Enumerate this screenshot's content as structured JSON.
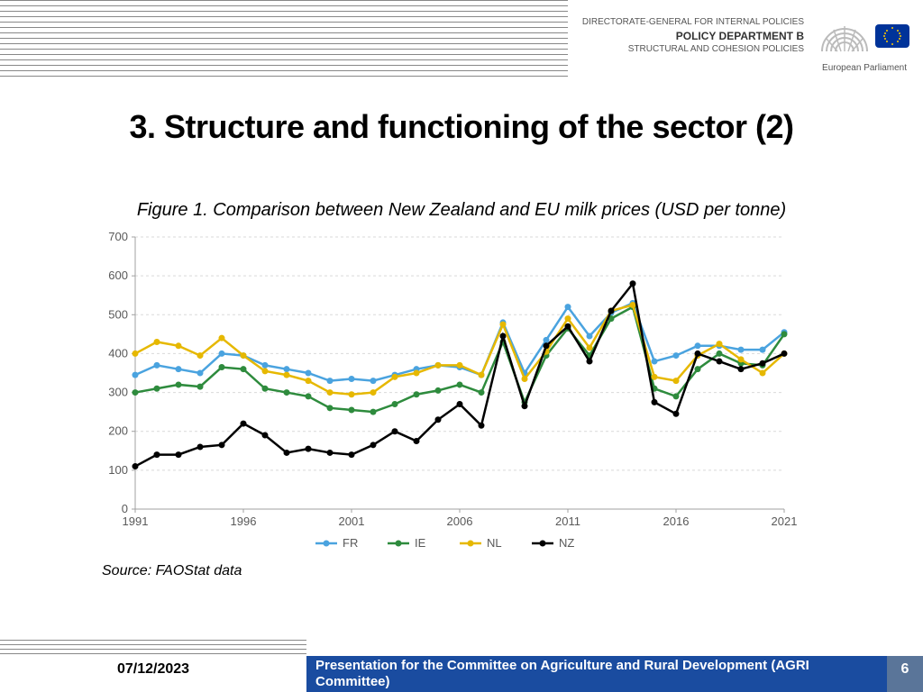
{
  "header": {
    "line1": "DIRECTORATE-GENERAL FOR INTERNAL POLICIES",
    "line2": "POLICY DEPARTMENT B",
    "line3": "STRUCTURAL AND COHESION POLICIES",
    "ep_caption": "European Parliament",
    "flag_color": "#003399",
    "star_color": "#ffcc00"
  },
  "title": "3. Structure and functioning of the sector (2)",
  "figure_caption": "Figure 1. Comparison between New Zealand and EU milk prices (USD per tonne)",
  "source": "Source: FAOStat data",
  "footer": {
    "date": "07/12/2023",
    "title": "Presentation for the Committee on Agriculture and Rural Development (AGRI Committee)",
    "page": "6",
    "bar_color": "#1a4ca0",
    "page_bg": "#5a7599"
  },
  "chart": {
    "type": "line",
    "ylim": [
      0,
      700
    ],
    "ytick_step": 100,
    "x_ticks": [
      1991,
      1996,
      2001,
      2006,
      2011,
      2016,
      2021
    ],
    "axis_color": "#a0a0a0",
    "tick_label_color": "#595959",
    "grid_color": "#d9d9d9",
    "tick_fontsize": 13,
    "plot_bg": "#ffffff",
    "line_width": 2.5,
    "marker_size": 3.5,
    "series": [
      {
        "label": "FR",
        "color": "#4aa3df",
        "marker": "circle",
        "data": [
          345,
          370,
          360,
          350,
          400,
          395,
          370,
          360,
          350,
          330,
          335,
          330,
          345,
          360,
          370,
          365,
          345,
          480,
          350,
          435,
          520,
          445,
          505,
          530,
          380,
          395,
          420,
          420,
          410,
          410,
          455
        ]
      },
      {
        "label": "IE",
        "color": "#2e8b3d",
        "marker": "circle",
        "data": [
          300,
          310,
          320,
          315,
          365,
          360,
          310,
          300,
          290,
          260,
          255,
          250,
          270,
          295,
          305,
          320,
          300,
          430,
          275,
          395,
          465,
          395,
          490,
          520,
          310,
          290,
          360,
          400,
          375,
          370,
          450
        ]
      },
      {
        "label": "NL",
        "color": "#e6b800",
        "marker": "circle",
        "data": [
          400,
          430,
          420,
          395,
          440,
          395,
          355,
          345,
          330,
          300,
          295,
          300,
          340,
          350,
          370,
          370,
          345,
          475,
          335,
          405,
          490,
          415,
          510,
          525,
          340,
          330,
          395,
          425,
          385,
          350,
          400
        ]
      },
      {
        "label": "NZ",
        "color": "#000000",
        "marker": "circle",
        "data": [
          110,
          140,
          140,
          160,
          165,
          220,
          190,
          145,
          155,
          145,
          140,
          165,
          200,
          175,
          230,
          270,
          215,
          445,
          265,
          420,
          470,
          380,
          510,
          580,
          275,
          245,
          400,
          380,
          360,
          375,
          400
        ]
      }
    ]
  }
}
